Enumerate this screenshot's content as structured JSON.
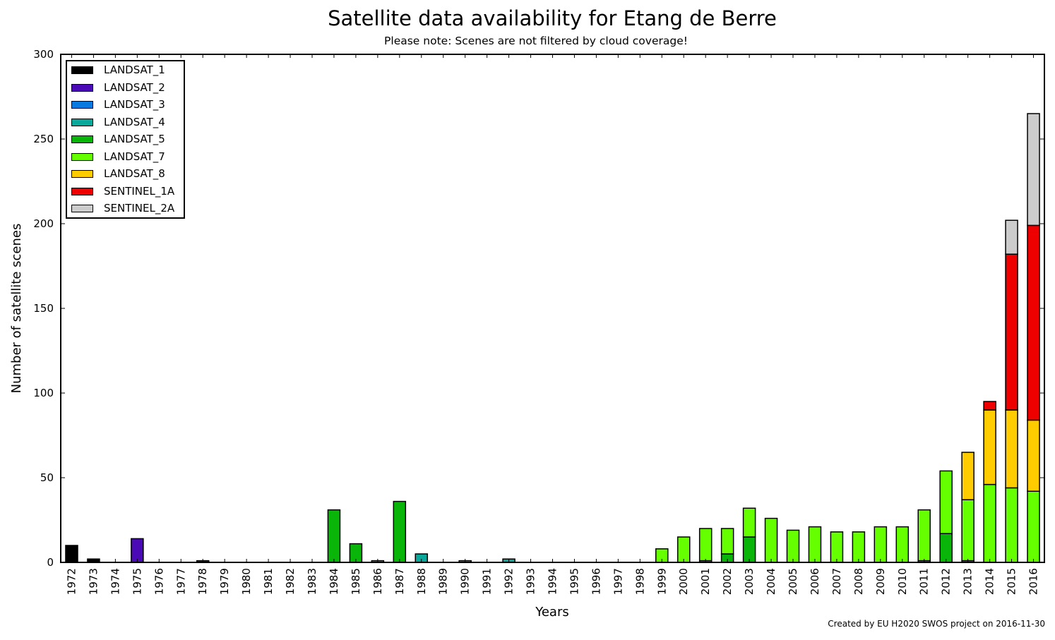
{
  "chart_data": {
    "type": "bar",
    "stacked": true,
    "title": "Satellite data availability for Etang de Berre",
    "subtitle": "Please note: Scenes are not filtered by cloud coverage!",
    "xlabel": "Years",
    "ylabel": "Number of satellite scenes",
    "ylim": [
      0,
      300
    ],
    "yticks": [
      "0",
      "50",
      "100",
      "150",
      "200",
      "250",
      "300"
    ],
    "grid": false,
    "legend_position": "top-left",
    "categories": [
      "1972",
      "1973",
      "1974",
      "1975",
      "1976",
      "1977",
      "1978",
      "1979",
      "1980",
      "1981",
      "1982",
      "1983",
      "1984",
      "1985",
      "1986",
      "1987",
      "1988",
      "1989",
      "1990",
      "1991",
      "1992",
      "1993",
      "1994",
      "1995",
      "1996",
      "1997",
      "1998",
      "1999",
      "2000",
      "2001",
      "2002",
      "2003",
      "2004",
      "2005",
      "2006",
      "2007",
      "2008",
      "2009",
      "2010",
      "2011",
      "2012",
      "2013",
      "2014",
      "2015",
      "2016"
    ],
    "series": [
      {
        "name": "LANDSAT_1",
        "color": "#000000",
        "values": [
          10,
          2,
          0,
          0,
          0,
          0,
          0,
          0,
          0,
          0,
          0,
          0,
          0,
          0,
          0,
          0,
          0,
          0,
          0,
          0,
          0,
          0,
          0,
          0,
          0,
          0,
          0,
          0,
          0,
          0,
          0,
          0,
          0,
          0,
          0,
          0,
          0,
          0,
          0,
          0,
          0,
          0,
          0,
          0,
          0
        ]
      },
      {
        "name": "LANDSAT_2",
        "color": "#4a0ab5",
        "values": [
          0,
          0,
          0,
          14,
          0,
          0,
          1,
          0,
          0,
          0,
          0,
          0,
          0,
          0,
          0,
          0,
          0,
          0,
          0,
          0,
          0,
          0,
          0,
          0,
          0,
          0,
          0,
          0,
          0,
          0,
          0,
          0,
          0,
          0,
          0,
          0,
          0,
          0,
          0,
          0,
          0,
          0,
          0,
          0,
          0
        ]
      },
      {
        "name": "LANDSAT_3",
        "color": "#0a7ae0",
        "values": [
          0,
          0,
          0,
          0,
          0,
          0,
          0,
          0,
          0,
          0,
          0,
          0,
          0,
          0,
          0,
          0,
          0,
          0,
          0,
          0,
          0,
          0,
          0,
          0,
          0,
          0,
          0,
          0,
          0,
          0,
          0,
          0,
          0,
          0,
          0,
          0,
          0,
          0,
          0,
          0,
          0,
          0,
          0,
          0,
          0
        ]
      },
      {
        "name": "LANDSAT_4",
        "color": "#0aa89a",
        "values": [
          0,
          0,
          0,
          0,
          0,
          0,
          0,
          0,
          0,
          0,
          0,
          0,
          0,
          0,
          1,
          0,
          5,
          0,
          1,
          0,
          2,
          0,
          0,
          0,
          0,
          0,
          0,
          0,
          0,
          0,
          0,
          0,
          0,
          0,
          0,
          0,
          0,
          0,
          0,
          0,
          0,
          0,
          0,
          0,
          0
        ]
      },
      {
        "name": "LANDSAT_5",
        "color": "#0ab50a",
        "values": [
          0,
          0,
          0,
          0,
          0,
          0,
          0,
          0,
          0,
          0,
          0,
          0,
          31,
          11,
          0,
          36,
          0,
          0,
          0,
          0,
          0,
          0,
          0,
          0,
          0,
          0,
          0,
          0,
          0,
          1,
          5,
          15,
          0,
          0,
          0,
          0,
          0,
          0,
          0,
          1,
          17,
          1,
          0,
          0,
          0
        ]
      },
      {
        "name": "LANDSAT_7",
        "color": "#66ff00",
        "values": [
          0,
          0,
          0,
          0,
          0,
          0,
          0,
          0,
          0,
          0,
          0,
          0,
          0,
          0,
          0,
          0,
          0,
          0,
          0,
          0,
          0,
          0,
          0,
          0,
          0,
          0,
          0,
          8,
          15,
          19,
          15,
          17,
          26,
          19,
          21,
          18,
          18,
          21,
          21,
          30,
          37,
          36,
          46,
          44,
          42
        ]
      },
      {
        "name": "LANDSAT_8",
        "color": "#ffcc00",
        "values": [
          0,
          0,
          0,
          0,
          0,
          0,
          0,
          0,
          0,
          0,
          0,
          0,
          0,
          0,
          0,
          0,
          0,
          0,
          0,
          0,
          0,
          0,
          0,
          0,
          0,
          0,
          0,
          0,
          0,
          0,
          0,
          0,
          0,
          0,
          0,
          0,
          0,
          0,
          0,
          0,
          0,
          28,
          44,
          46,
          42
        ]
      },
      {
        "name": "SENTINEL_1A",
        "color": "#ee0000",
        "values": [
          0,
          0,
          0,
          0,
          0,
          0,
          0,
          0,
          0,
          0,
          0,
          0,
          0,
          0,
          0,
          0,
          0,
          0,
          0,
          0,
          0,
          0,
          0,
          0,
          0,
          0,
          0,
          0,
          0,
          0,
          0,
          0,
          0,
          0,
          0,
          0,
          0,
          0,
          0,
          0,
          0,
          0,
          5,
          92,
          115
        ]
      },
      {
        "name": "SENTINEL_2A",
        "color": "#cccccc",
        "values": [
          0,
          0,
          0,
          0,
          0,
          0,
          0,
          0,
          0,
          0,
          0,
          0,
          0,
          0,
          0,
          0,
          0,
          0,
          0,
          0,
          0,
          0,
          0,
          0,
          0,
          0,
          0,
          0,
          0,
          0,
          0,
          0,
          0,
          0,
          0,
          0,
          0,
          0,
          0,
          0,
          0,
          0,
          0,
          20,
          66
        ]
      }
    ]
  },
  "footer": {
    "credit": "Created by EU H2020 SWOS project on 2016-11-30"
  }
}
